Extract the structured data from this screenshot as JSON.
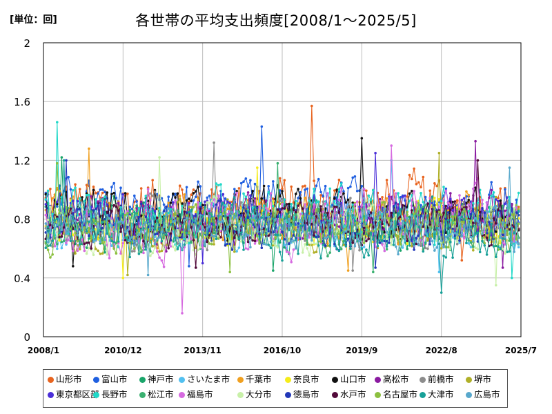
{
  "header": {
    "unit_label": "[単位：回]",
    "title": "各世帯の平均支出頻度[2008/1～2025/5]"
  },
  "chart_data": {
    "type": "line",
    "title": "各世帯の平均支出頻度[2008/1～2025/5]",
    "unit": "[単位：回]",
    "xlabel": "",
    "ylabel": "",
    "ylim": [
      0,
      2
    ],
    "y_ticks": [
      "0",
      "0.4",
      "0.8",
      "1.2",
      "1.6",
      "2"
    ],
    "x_ticks": [
      "2008/1",
      "2010/12",
      "2013/11",
      "2016/10",
      "2019/9",
      "2022/8",
      "2025/7"
    ],
    "x_start": "2008/1",
    "x_end": "2025/7",
    "grid": true,
    "legend_position": "bottom",
    "series": [
      {
        "name": "山形市",
        "color": "#e8641f",
        "summary": {
          "min": 0.52,
          "max": 1.57,
          "typical": 0.9
        }
      },
      {
        "name": "富山市",
        "color": "#1f5fe0",
        "summary": {
          "min": 0.48,
          "max": 1.43,
          "typical": 0.88
        }
      },
      {
        "name": "神戸市",
        "color": "#1aa56a",
        "summary": {
          "min": 0.45,
          "max": 1.22,
          "typical": 0.76
        }
      },
      {
        "name": "さいたま市",
        "color": "#52c0f0",
        "summary": {
          "min": 0.44,
          "max": 1.2,
          "typical": 0.74
        }
      },
      {
        "name": "千葉市",
        "color": "#f0a020",
        "summary": {
          "min": 0.45,
          "max": 1.28,
          "typical": 0.8
        }
      },
      {
        "name": "奈良市",
        "color": "#f5ec1a",
        "summary": {
          "min": 0.4,
          "max": 1.15,
          "typical": 0.76
        }
      },
      {
        "name": "山口市",
        "color": "#111111",
        "summary": {
          "min": 0.48,
          "max": 1.35,
          "typical": 0.84
        }
      },
      {
        "name": "高松市",
        "color": "#8a1aa0",
        "summary": {
          "min": 0.47,
          "max": 1.33,
          "typical": 0.8
        }
      },
      {
        "name": "前橋市",
        "color": "#8c8c8c",
        "summary": {
          "min": 0.45,
          "max": 1.32,
          "typical": 0.78
        }
      },
      {
        "name": "堺市",
        "color": "#b0b028",
        "summary": {
          "min": 0.42,
          "max": 1.25,
          "typical": 0.75
        }
      },
      {
        "name": "東京都区部",
        "color": "#4a2ed8",
        "summary": {
          "min": 0.5,
          "max": 1.25,
          "typical": 0.82
        }
      },
      {
        "name": "長野市",
        "color": "#20d8c8",
        "summary": {
          "min": 0.4,
          "max": 1.46,
          "typical": 0.82
        }
      },
      {
        "name": "松江市",
        "color": "#3ab070",
        "summary": {
          "min": 0.44,
          "max": 1.18,
          "typical": 0.74
        }
      },
      {
        "name": "福島市",
        "color": "#d66ae0",
        "summary": {
          "min": 0.16,
          "max": 1.3,
          "typical": 0.78
        }
      },
      {
        "name": "大分市",
        "color": "#c8f0a8",
        "summary": {
          "min": 0.35,
          "max": 1.22,
          "typical": 0.74
        }
      },
      {
        "name": "徳島市",
        "color": "#2238b8",
        "summary": {
          "min": 0.47,
          "max": 1.2,
          "typical": 0.76
        }
      },
      {
        "name": "水戸市",
        "color": "#520a3a",
        "summary": {
          "min": 0.47,
          "max": 1.2,
          "typical": 0.76
        }
      },
      {
        "name": "名古屋市",
        "color": "#8cc040",
        "summary": {
          "min": 0.44,
          "max": 1.18,
          "typical": 0.74
        }
      },
      {
        "name": "大津市",
        "color": "#18a098",
        "summary": {
          "min": 0.3,
          "max": 1.2,
          "typical": 0.72
        }
      },
      {
        "name": "広島市",
        "color": "#58a8cc",
        "summary": {
          "min": 0.42,
          "max": 1.15,
          "typical": 0.74
        }
      }
    ]
  }
}
